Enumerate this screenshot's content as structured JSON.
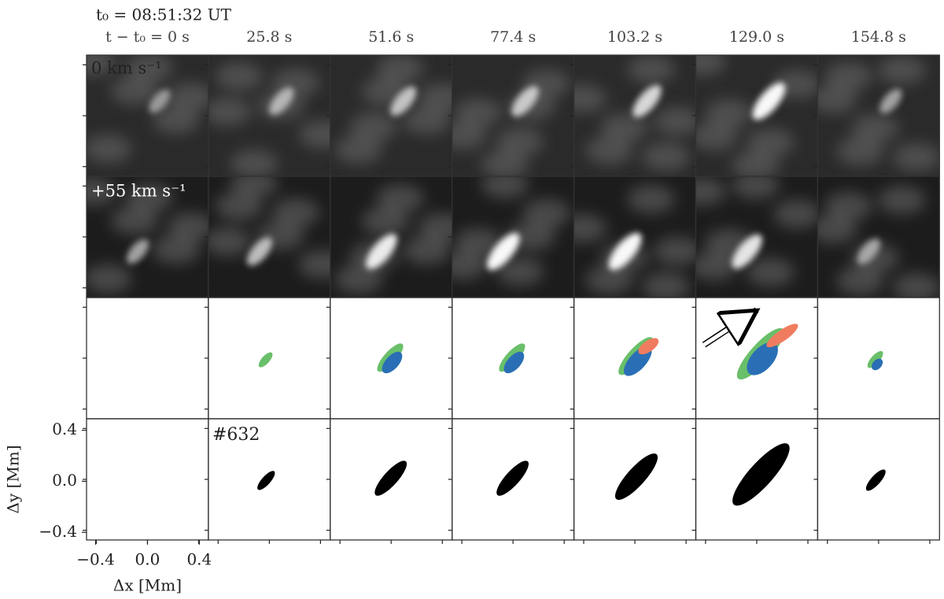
{
  "chart_data": {
    "type": "panel-grid",
    "title": "t₀ = 08:51:32 UT",
    "columns": [
      "t − t₀ = 0 s",
      "25.8 s",
      "51.6 s",
      "77.4 s",
      "103.2 s",
      "129.0 s",
      "154.8 s"
    ],
    "row_labels": [
      "0 km s⁻¹",
      "+55 km s⁻¹"
    ],
    "annotation": "#632",
    "x_label": "Δx [Mm]",
    "y_label": "Δy [Mm]",
    "xlim": [
      -0.47,
      0.47
    ],
    "ylim": [
      -0.46,
      0.49
    ],
    "xticks": [
      {
        "value": -0.4,
        "label": "−0.4"
      },
      {
        "value": 0,
        "label": "0.0"
      },
      {
        "value": 0.4,
        "label": "0.4"
      }
    ],
    "yticks": [
      {
        "value": -0.4,
        "label": "−0.4"
      },
      {
        "value": 0,
        "label": "0.0"
      },
      {
        "value": 0.4,
        "label": "0.4"
      }
    ]
  }
}
